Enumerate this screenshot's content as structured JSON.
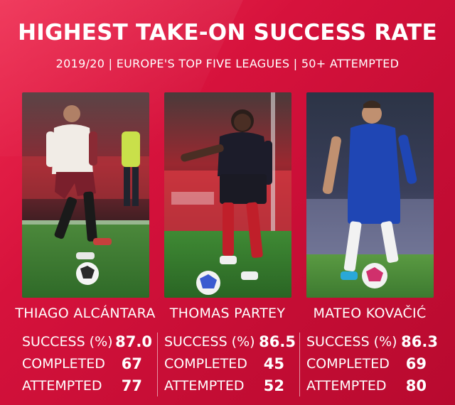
{
  "title": "HIGHEST TAKE-ON SUCCESS RATE",
  "subtitle": "2019/20 | EUROPE'S TOP FIVE LEAGUES | 50+ ATTEMPTED",
  "stat_labels": {
    "success": "SUCCESS (%)",
    "completed": "COMPLETED",
    "attempted": "ATTEMPTED"
  },
  "players": [
    {
      "name": "THIAGO ALCÁNTARA",
      "success": "87.0",
      "completed": "67",
      "attempted": "77",
      "kit_color": "#f1ece6"
    },
    {
      "name": "THOMAS PARTEY",
      "success": "86.5",
      "completed": "45",
      "attempted": "52",
      "kit_color": "#1c1c2a"
    },
    {
      "name": "MATEO KOVAČIĆ",
      "success": "86.3",
      "completed": "69",
      "attempted": "80",
      "kit_color": "#1f46b4"
    }
  ],
  "colors": {
    "background": "#d4123a",
    "text": "#ffffff"
  }
}
